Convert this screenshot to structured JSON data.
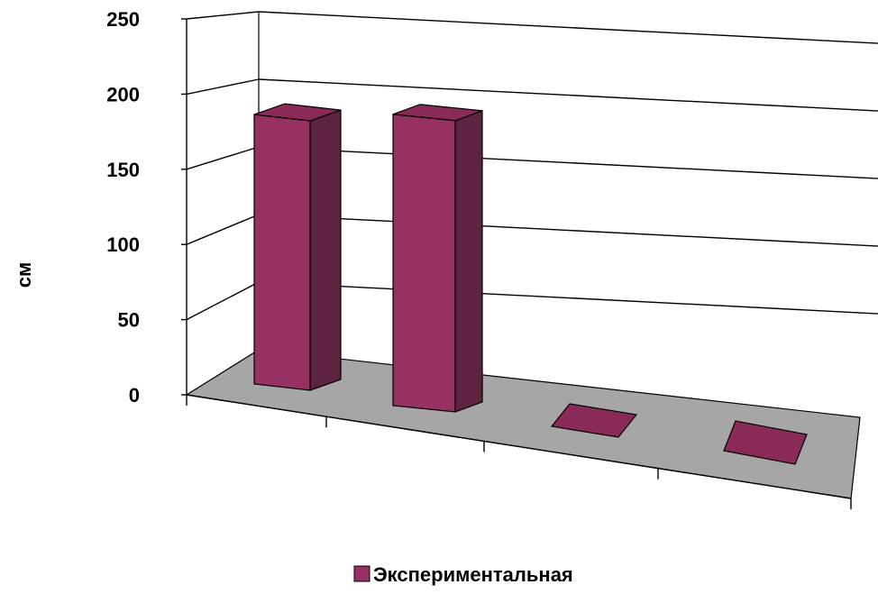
{
  "chart_data": {
    "type": "bar",
    "categories": [
      "",
      "",
      "",
      ""
    ],
    "series": [
      {
        "name": "Экспериментальная",
        "values": [
          185,
          200,
          0,
          0
        ]
      }
    ],
    "ylabel": "см",
    "xlabel": "",
    "ylim": [
      0,
      250
    ],
    "yticks": [
      "0",
      "50",
      "100",
      "150",
      "200",
      "250"
    ],
    "grid": true,
    "legend_position": "bottom",
    "colors": {
      "bar_front": "#983163",
      "bar_side": "#5e2340",
      "bar_top": "#8a2a58",
      "floor": "#a6a6a6",
      "grid": "#000000"
    }
  }
}
